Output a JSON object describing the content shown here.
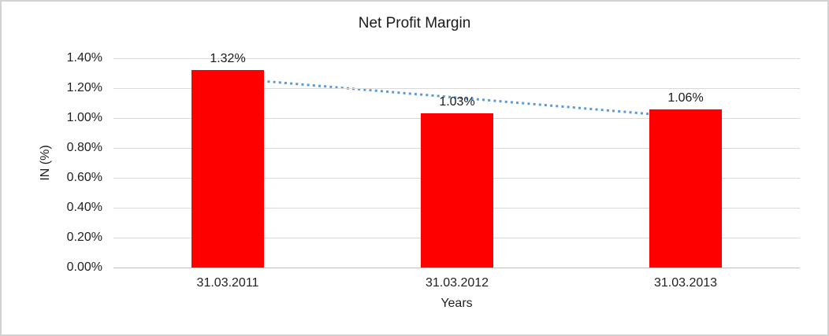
{
  "chart_data": {
    "type": "bar",
    "title": "Net Profit Margin",
    "xlabel": "Years",
    "ylabel": "IN (%)",
    "categories": [
      "31.03.2011",
      "31.03.2012",
      "31.03.2013"
    ],
    "values": [
      1.32,
      1.03,
      1.06
    ],
    "data_labels": [
      "1.32%",
      "1.03%",
      "1.06%"
    ],
    "ylim": [
      0,
      1.4
    ],
    "ytick_step": 0.2,
    "ytick_labels": [
      "0.00%",
      "0.20%",
      "0.40%",
      "0.60%",
      "0.80%",
      "1.00%",
      "1.20%",
      "1.40%"
    ],
    "grid": true,
    "legend": false,
    "bar_color": "#ff0000",
    "gridline_color": "#d9d9d9",
    "axis_line_color": "#bfbfbf",
    "text_color": "#1a1a1a",
    "trendline": {
      "type": "linear",
      "style": "dotted",
      "color": "#5b9bd5",
      "start_value": 1.267,
      "end_value": 1.007
    }
  }
}
